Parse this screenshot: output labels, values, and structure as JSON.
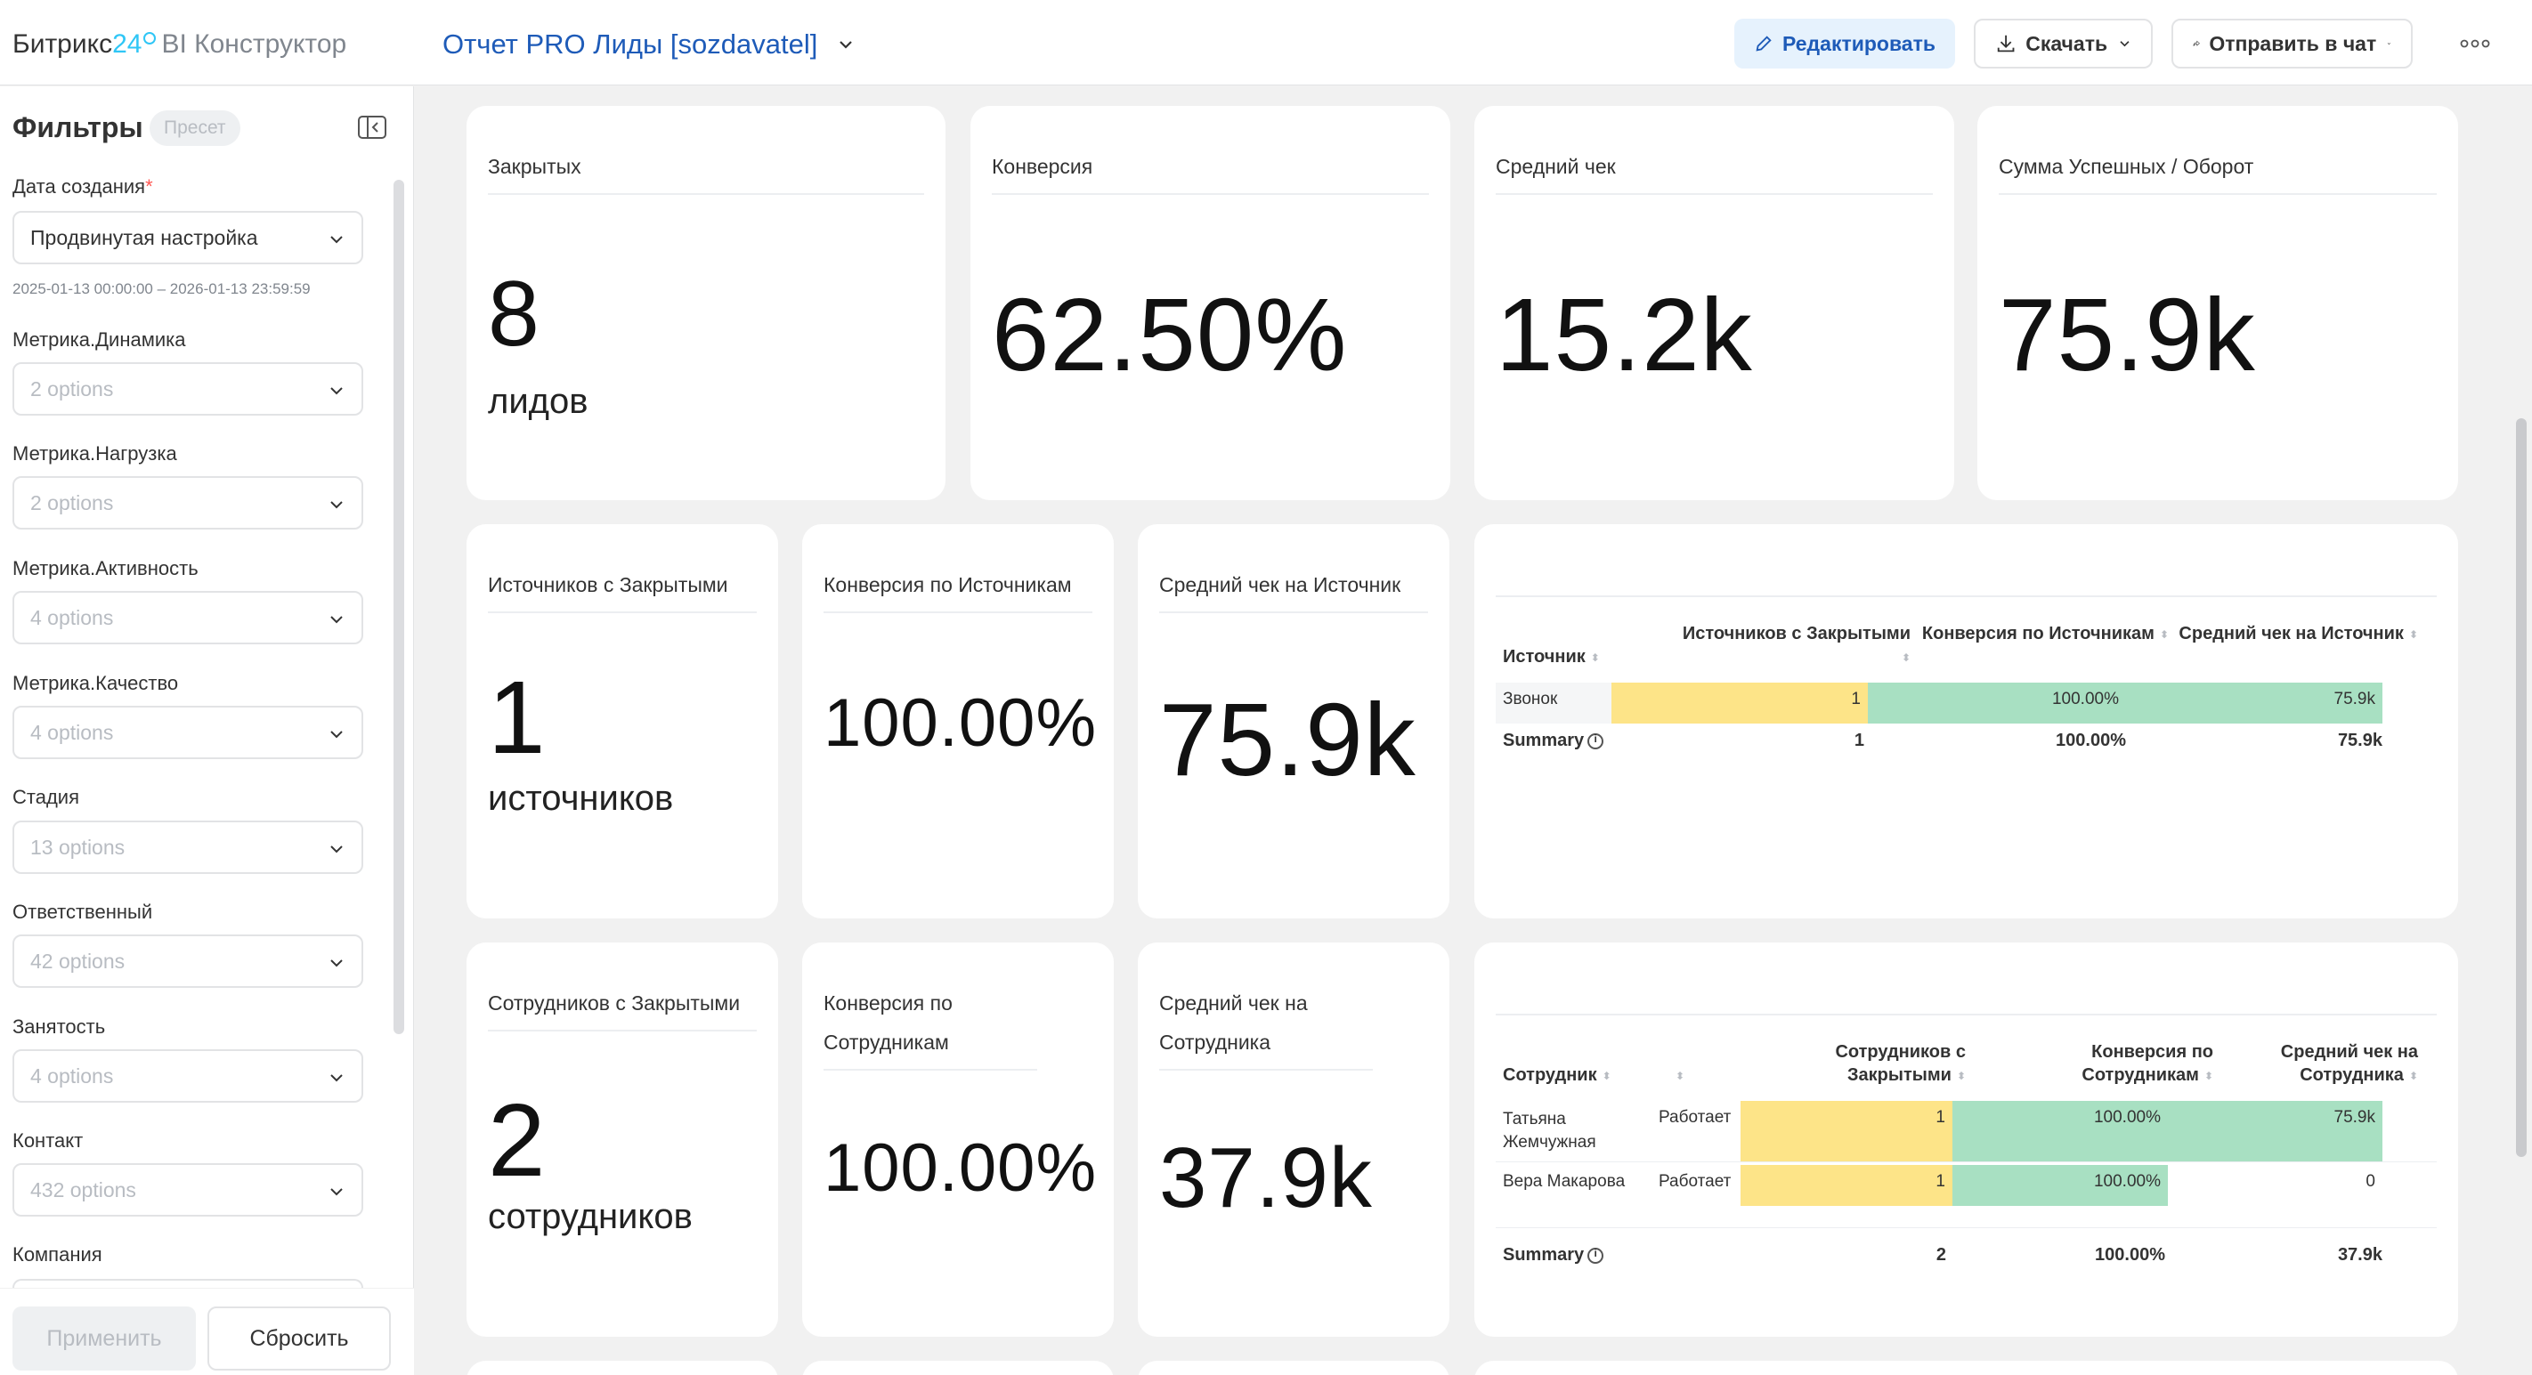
{
  "header": {
    "brand_name": "Битрикс",
    "brand_num": "24",
    "brand_product": "BI Конструктор",
    "report_title": "Отчет PRO Лиды [sozdavatel]",
    "edit_label": "Редактировать",
    "download_label": "Скачать",
    "send_label": "Отправить в чат"
  },
  "sidebar": {
    "title": "Фильтры",
    "preset_label": "Пресет",
    "filters": [
      {
        "label": "Дата создания",
        "value": "Продвинутая настройка",
        "hint": "2025-01-13 00:00:00 – 2026-01-13 23:59:59"
      },
      {
        "label": "Метрика.Динамика",
        "value": "2 options"
      },
      {
        "label": "Метрика.Нагрузка",
        "value": "2 options"
      },
      {
        "label": "Метрика.Активность",
        "value": "4 options"
      },
      {
        "label": "Метрика.Качество",
        "value": "4 options"
      },
      {
        "label": "Стадия",
        "value": "13 options"
      },
      {
        "label": "Ответственный",
        "value": "42 options"
      },
      {
        "label": "Занятость",
        "value": "4 options"
      },
      {
        "label": "Контакт",
        "value": "432 options"
      },
      {
        "label": "Компания",
        "value": ""
      }
    ],
    "apply_label": "Применить",
    "reset_label": "Сбросить"
  },
  "cards": {
    "closed": {
      "title": "Закрытых",
      "value": "8",
      "unit": "лидов"
    },
    "conversion": {
      "title": "Конверсия",
      "value": "62.50%"
    },
    "avg_check": {
      "title": "Средний чек",
      "value": "15.2k"
    },
    "sum_success": {
      "title": "Сумма Успешных / Оборот",
      "value": "75.9k"
    },
    "sources_closed": {
      "title": "Источников с Закрытыми",
      "value": "1",
      "unit": "источников"
    },
    "conv_sources": {
      "title": "Конверсия по Источникам",
      "value": "100.00%"
    },
    "avg_source": {
      "title": "Средний чек на Источник",
      "value": "75.9k"
    },
    "employees_closed": {
      "title": "Сотрудников с Закрытыми",
      "value": "2",
      "unit": "сотрудников"
    },
    "conv_employees": {
      "title": "Конверсия по Сотрудникам",
      "value": "100.00%"
    },
    "avg_employee": {
      "title": "Средний чек на Сотрудника",
      "value": "37.9k"
    }
  },
  "source_table": {
    "headers": [
      "Источник",
      "Источников с Закрытыми",
      "Конверсия по Источникам",
      "Средний чек на Источник"
    ],
    "rows": [
      {
        "name": "Звонок",
        "closed": "1",
        "conversion": "100.00%",
        "avg": "75.9k"
      }
    ],
    "summary": {
      "label": "Summary",
      "closed": "1",
      "conversion": "100.00%",
      "avg": "75.9k"
    }
  },
  "employee_table": {
    "headers": [
      "Сотрудник",
      "Сотрудников с Закрытыми",
      "Конверсия по Сотрудникам",
      "Средний чек на Сотрудника"
    ],
    "rows": [
      {
        "name": "Татьяна Жемчужная",
        "status": "Работает",
        "closed": "1",
        "conversion": "100.00%",
        "avg": "75.9k"
      },
      {
        "name": "Вера Макарова",
        "status": "Работает",
        "closed": "1",
        "conversion": "100.00%",
        "avg": "0"
      }
    ],
    "summary": {
      "label": "Summary",
      "closed": "2",
      "conversion": "100.00%",
      "avg": "37.9k"
    }
  },
  "colors": {
    "accent": "#1e5bb8",
    "brand": "#2fc6f6",
    "bar_yellow": "#fde488",
    "bar_green": "#a8e0c2"
  }
}
